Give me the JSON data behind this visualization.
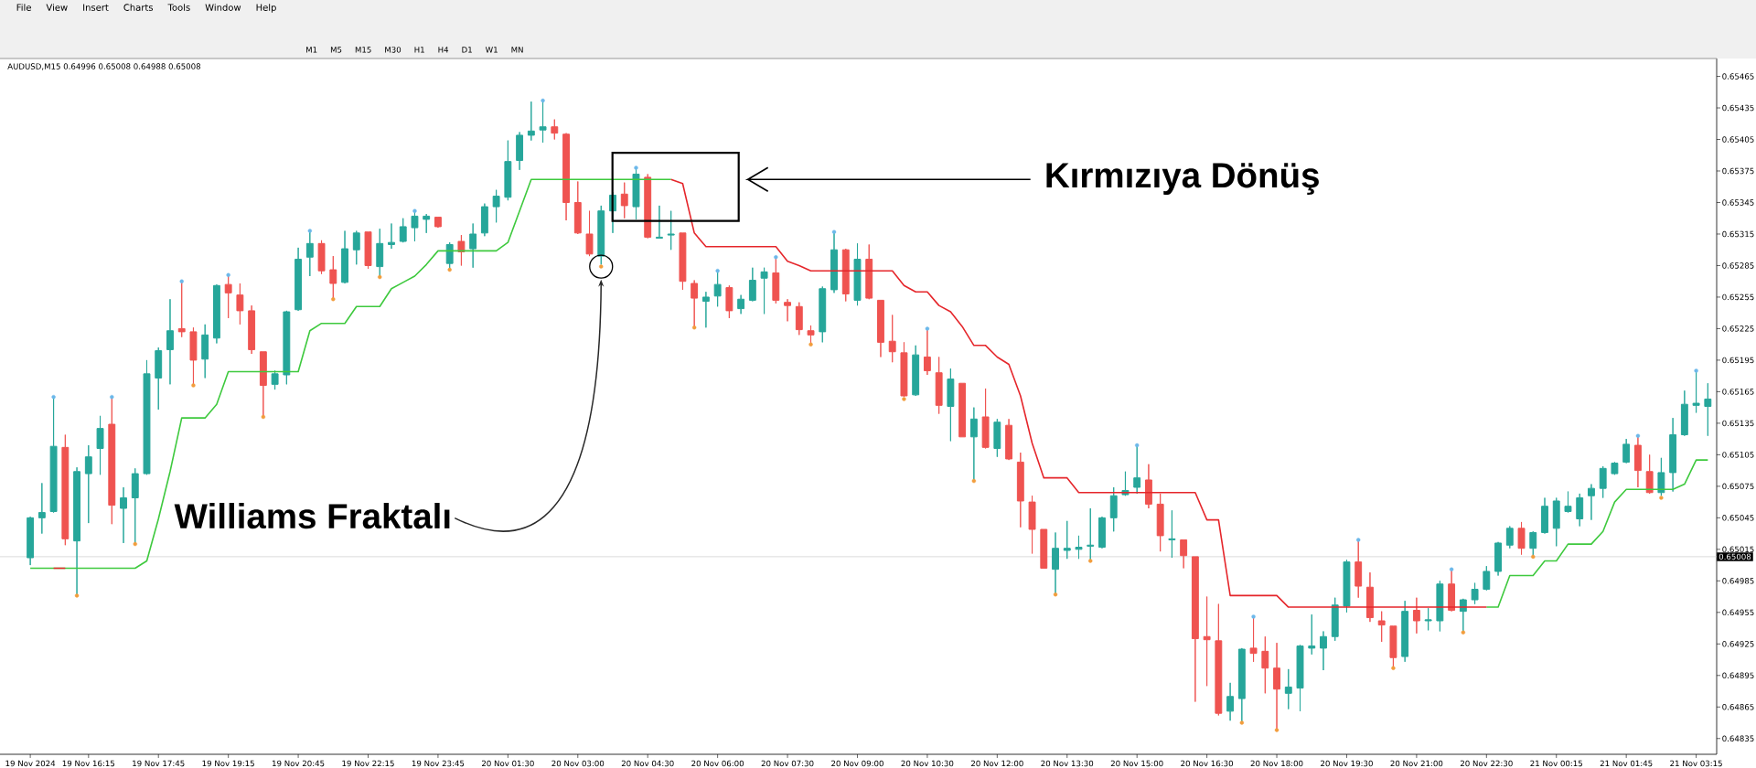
{
  "chart_data": {
    "type": "candlestick",
    "title": "AUDUSD,M15 0.64996 0.65008 0.64988 0.65008",
    "categories": [
      "19 Nov 2024",
      null,
      null,
      null,
      null,
      "19 Nov 16:15",
      null,
      null,
      null,
      null,
      null,
      "19 Nov 17:45",
      null,
      null,
      null,
      null,
      null,
      "19 Nov 19:15",
      null,
      null,
      null,
      null,
      null,
      "19 Nov 20:45",
      null,
      null,
      null,
      null,
      null,
      "19 Nov 22:15",
      null,
      null,
      null,
      null,
      null,
      "19 Nov 23:45",
      null,
      null,
      null,
      null,
      null,
      "20 Nov 01:30",
      null,
      null,
      null,
      null,
      null,
      "20 Nov 03:00",
      null,
      null,
      null,
      null,
      null,
      "20 Nov 04:30",
      null,
      null,
      null,
      null,
      null,
      "20 Nov 06:00",
      null,
      null,
      null,
      null,
      null,
      "20 Nov 07:30",
      null,
      null,
      null,
      null,
      null,
      "20 Nov 09:00",
      null,
      null,
      null,
      null,
      null,
      "20 Nov 10:30",
      null,
      null,
      null,
      null,
      null,
      "20 Nov 12:00",
      null,
      null,
      null,
      null,
      null,
      "20 Nov 13:30",
      null,
      null,
      null,
      null,
      null,
      "20 Nov 15:00",
      null,
      null,
      null,
      null,
      null,
      "20 Nov 16:30",
      null,
      null,
      null,
      null,
      null,
      "20 Nov 18:00",
      null,
      null,
      null,
      null,
      null,
      "20 Nov 19:30",
      null,
      null,
      null,
      null,
      null,
      "20 Nov 21:00",
      null,
      null,
      null,
      null,
      null,
      "20 Nov 22:30",
      null,
      null,
      null,
      null,
      null,
      "21 Nov 00:15",
      null,
      null,
      null,
      null,
      null,
      "21 Nov 01:45",
      null,
      null,
      null,
      null,
      null,
      "21 Nov 03:15",
      null
    ],
    "ohlc": [
      [
        0.65007,
        0.65046,
        0.65,
        0.65045
      ],
      [
        0.65045,
        0.65078,
        0.6503,
        0.6505
      ],
      [
        0.65051,
        0.6516,
        0.6505,
        0.65113
      ],
      [
        0.65112,
        0.65124,
        0.65019,
        0.65025
      ],
      [
        0.65023,
        0.65093,
        0.64972,
        0.65089
      ],
      [
        0.65087,
        0.65114,
        0.6504,
        0.65103
      ],
      [
        0.65111,
        0.65142,
        0.65086,
        0.6513
      ],
      [
        0.65134,
        0.6516,
        0.65039,
        0.65057
      ],
      [
        0.65054,
        0.65074,
        0.65021,
        0.65064
      ],
      [
        0.65064,
        0.65092,
        0.65021,
        0.65087
      ],
      [
        0.65087,
        0.65195,
        0.65086,
        0.65182
      ],
      [
        0.65178,
        0.65207,
        0.65148,
        0.65204
      ],
      [
        0.65205,
        0.65253,
        0.65172,
        0.65223
      ],
      [
        0.65225,
        0.6527,
        0.65217,
        0.65222
      ],
      [
        0.65222,
        0.65226,
        0.65171,
        0.65195
      ],
      [
        0.65196,
        0.65229,
        0.65178,
        0.65219
      ],
      [
        0.65216,
        0.65267,
        0.65211,
        0.65266
      ],
      [
        0.65267,
        0.65276,
        0.65235,
        0.65259
      ],
      [
        0.65257,
        0.65268,
        0.65229,
        0.65242
      ],
      [
        0.65242,
        0.65247,
        0.65201,
        0.65205
      ],
      [
        0.65203,
        0.65203,
        0.65142,
        0.65171
      ],
      [
        0.65172,
        0.65185,
        0.65167,
        0.65182
      ],
      [
        0.65181,
        0.65242,
        0.65172,
        0.65241
      ],
      [
        0.65243,
        0.65302,
        0.65242,
        0.65291
      ],
      [
        0.65293,
        0.65318,
        0.65275,
        0.65306
      ],
      [
        0.65306,
        0.65309,
        0.65277,
        0.6528
      ],
      [
        0.65281,
        0.65294,
        0.65253,
        0.65268
      ],
      [
        0.65269,
        0.65318,
        0.65268,
        0.65301
      ],
      [
        0.653,
        0.65318,
        0.65286,
        0.65316
      ],
      [
        0.65317,
        0.65317,
        0.65282,
        0.65285
      ],
      [
        0.65284,
        0.6532,
        0.65275,
        0.65306
      ],
      [
        0.65305,
        0.65325,
        0.65301,
        0.65307
      ],
      [
        0.65308,
        0.6533,
        0.65307,
        0.65322
      ],
      [
        0.65321,
        0.65337,
        0.65308,
        0.65332
      ],
      [
        0.65329,
        0.65334,
        0.65316,
        0.65332
      ],
      [
        0.65331,
        0.65331,
        0.65321,
        0.65322
      ],
      [
        0.65287,
        0.65307,
        0.65282,
        0.65305
      ],
      [
        0.65308,
        0.65314,
        0.65285,
        0.65298
      ],
      [
        0.65301,
        0.65325,
        0.65283,
        0.65315
      ],
      [
        0.65316,
        0.65344,
        0.65313,
        0.65341
      ],
      [
        0.65341,
        0.65357,
        0.65326,
        0.65351
      ],
      [
        0.6535,
        0.65404,
        0.65347,
        0.65384
      ],
      [
        0.65385,
        0.65412,
        0.65376,
        0.65409
      ],
      [
        0.65409,
        0.65441,
        0.65404,
        0.65413
      ],
      [
        0.65414,
        0.65442,
        0.65402,
        0.65417
      ],
      [
        0.65417,
        0.65424,
        0.65405,
        0.65411
      ],
      [
        0.6541,
        0.65411,
        0.65328,
        0.65345
      ],
      [
        0.65345,
        0.65365,
        0.65315,
        0.65316
      ],
      [
        0.65315,
        0.65337,
        0.65294,
        0.65296
      ],
      [
        0.65294,
        0.65342,
        0.65286,
        0.65337
      ],
      [
        0.65337,
        0.65355,
        0.65316,
        0.65352
      ],
      [
        0.65353,
        0.65364,
        0.6533,
        0.65342
      ],
      [
        0.65341,
        0.65378,
        0.65329,
        0.65372
      ],
      [
        0.65369,
        0.65372,
        0.65311,
        0.65312
      ],
      [
        0.65311,
        0.65342,
        0.65311,
        0.65312
      ],
      [
        0.65314,
        0.65337,
        0.653,
        0.65315
      ],
      [
        0.65316,
        0.65316,
        0.65262,
        0.6527
      ],
      [
        0.65268,
        0.65271,
        0.65226,
        0.65254
      ],
      [
        0.65251,
        0.6526,
        0.65226,
        0.65255
      ],
      [
        0.65256,
        0.6528,
        0.65246,
        0.65267
      ],
      [
        0.65264,
        0.65266,
        0.65235,
        0.65242
      ],
      [
        0.65244,
        0.65257,
        0.65239,
        0.65253
      ],
      [
        0.65252,
        0.65283,
        0.65251,
        0.65271
      ],
      [
        0.65273,
        0.65283,
        0.65239,
        0.65279
      ],
      [
        0.65278,
        0.65293,
        0.65249,
        0.65252
      ],
      [
        0.6525,
        0.65253,
        0.65232,
        0.65247
      ],
      [
        0.65246,
        0.6525,
        0.65219,
        0.65224
      ],
      [
        0.65223,
        0.65228,
        0.65211,
        0.65219
      ],
      [
        0.65222,
        0.65265,
        0.65212,
        0.65263
      ],
      [
        0.65262,
        0.65317,
        0.65259,
        0.653
      ],
      [
        0.653,
        0.65301,
        0.65251,
        0.65258
      ],
      [
        0.65252,
        0.65306,
        0.65247,
        0.65291
      ],
      [
        0.65291,
        0.65305,
        0.65253,
        0.65254
      ],
      [
        0.65252,
        0.65252,
        0.65198,
        0.65212
      ],
      [
        0.65213,
        0.65238,
        0.65193,
        0.65203
      ],
      [
        0.65202,
        0.65212,
        0.6516,
        0.65161
      ],
      [
        0.65162,
        0.65209,
        0.65161,
        0.652
      ],
      [
        0.65198,
        0.65225,
        0.65181,
        0.65185
      ],
      [
        0.65183,
        0.65198,
        0.65144,
        0.65152
      ],
      [
        0.65151,
        0.65187,
        0.65118,
        0.65177
      ],
      [
        0.65173,
        0.65173,
        0.65122,
        0.65122
      ],
      [
        0.65122,
        0.6515,
        0.65081,
        0.65139
      ],
      [
        0.65141,
        0.65168,
        0.65111,
        0.65112
      ],
      [
        0.65111,
        0.65139,
        0.65103,
        0.65136
      ],
      [
        0.65133,
        0.65139,
        0.651,
        0.65101
      ],
      [
        0.65098,
        0.65107,
        0.65036,
        0.65061
      ],
      [
        0.6506,
        0.65066,
        0.65011,
        0.65034
      ],
      [
        0.65034,
        0.65034,
        0.64997,
        0.64997
      ],
      [
        0.64996,
        0.65031,
        0.64972,
        0.65016
      ],
      [
        0.65014,
        0.65042,
        0.65006,
        0.65016
      ],
      [
        0.65015,
        0.65028,
        0.65006,
        0.65017
      ],
      [
        0.65018,
        0.65054,
        0.65005,
        0.65019
      ],
      [
        0.65017,
        0.65046,
        0.65016,
        0.65045
      ],
      [
        0.65045,
        0.65074,
        0.65032,
        0.65066
      ],
      [
        0.65067,
        0.65089,
        0.65066,
        0.65071
      ],
      [
        0.65074,
        0.65114,
        0.65068,
        0.65083
      ],
      [
        0.65081,
        0.65096,
        0.65054,
        0.65058
      ],
      [
        0.65058,
        0.65068,
        0.65013,
        0.65028
      ],
      [
        0.65024,
        0.65052,
        0.65007,
        0.65025
      ],
      [
        0.65024,
        0.65024,
        0.64997,
        0.65009
      ],
      [
        0.65008,
        0.65008,
        0.6487,
        0.6493
      ],
      [
        0.64932,
        0.6497,
        0.64885,
        0.64929
      ],
      [
        0.64928,
        0.64963,
        0.64857,
        0.64859
      ],
      [
        0.64861,
        0.64888,
        0.64852,
        0.64875
      ],
      [
        0.64873,
        0.64921,
        0.6485,
        0.6492
      ],
      [
        0.64921,
        0.64951,
        0.64908,
        0.64916
      ],
      [
        0.64918,
        0.64932,
        0.64878,
        0.64902
      ],
      [
        0.64902,
        0.64926,
        0.64844,
        0.64882
      ],
      [
        0.64878,
        0.64901,
        0.64863,
        0.64884
      ],
      [
        0.64883,
        0.64924,
        0.64861,
        0.64923
      ],
      [
        0.64921,
        0.64953,
        0.64915,
        0.64923
      ],
      [
        0.64921,
        0.64937,
        0.649,
        0.64932
      ],
      [
        0.64932,
        0.64969,
        0.64928,
        0.64962
      ],
      [
        0.64961,
        0.65005,
        0.64955,
        0.65003
      ],
      [
        0.65003,
        0.65024,
        0.64969,
        0.6498
      ],
      [
        0.64979,
        0.64993,
        0.64946,
        0.6495
      ],
      [
        0.64947,
        0.64956,
        0.64927,
        0.64943
      ],
      [
        0.64942,
        0.64942,
        0.64902,
        0.64912
      ],
      [
        0.64913,
        0.64966,
        0.64908,
        0.64956
      ],
      [
        0.64957,
        0.64969,
        0.64935,
        0.64947
      ],
      [
        0.64947,
        0.64959,
        0.64938,
        0.64948
      ],
      [
        0.64947,
        0.64985,
        0.64937,
        0.64982
      ],
      [
        0.64982,
        0.64996,
        0.64956,
        0.64957
      ],
      [
        0.64956,
        0.64968,
        0.64936,
        0.64967
      ],
      [
        0.64967,
        0.64983,
        0.64963,
        0.64977
      ],
      [
        0.64977,
        0.64999,
        0.64976,
        0.64994
      ],
      [
        0.64994,
        0.65022,
        0.6499,
        0.65021
      ],
      [
        0.65019,
        0.65037,
        0.65016,
        0.65035
      ],
      [
        0.65035,
        0.65041,
        0.6501,
        0.65016
      ],
      [
        0.65016,
        0.65032,
        0.65008,
        0.65031
      ],
      [
        0.65031,
        0.65064,
        0.6503,
        0.65056
      ],
      [
        0.65035,
        0.65064,
        0.65018,
        0.65061
      ],
      [
        0.65051,
        0.6507,
        0.6505,
        0.65056
      ],
      [
        0.65044,
        0.65068,
        0.65037,
        0.65064
      ],
      [
        0.65066,
        0.65077,
        0.65043,
        0.65073
      ],
      [
        0.65073,
        0.65094,
        0.65064,
        0.65092
      ],
      [
        0.65087,
        0.65098,
        0.65086,
        0.65097
      ],
      [
        0.65098,
        0.6512,
        0.65097,
        0.65115
      ],
      [
        0.65114,
        0.65123,
        0.65074,
        0.6509
      ],
      [
        0.65089,
        0.65105,
        0.65068,
        0.65069
      ],
      [
        0.65069,
        0.65102,
        0.65066,
        0.65088
      ],
      [
        0.65088,
        0.6514,
        0.6507,
        0.65124
      ],
      [
        0.65124,
        0.65166,
        0.65123,
        0.65153
      ],
      [
        0.65152,
        0.65185,
        0.65145,
        0.65154
      ],
      [
        0.65151,
        0.65173,
        0.65123,
        0.65158
      ]
    ],
    "colors": [
      "#26a69a",
      "#26a69a",
      "#26a69a",
      "#ef5350",
      "#26a69a",
      "#26a69a",
      "#26a69a",
      "#ef5350",
      "#26a69a",
      "#26a69a",
      "#26a69a",
      "#26a69a",
      "#26a69a",
      "#ef5350",
      "#ef5350",
      "#26a69a",
      "#26a69a",
      "#ef5350",
      "#ef5350",
      "#ef5350",
      "#ef5350",
      "#26a69a",
      "#26a69a",
      "#26a69a",
      "#26a69a",
      "#ef5350",
      "#ef5350",
      "#26a69a",
      "#26a69a",
      "#ef5350",
      "#26a69a",
      "#26a69a",
      "#26a69a",
      "#26a69a",
      "#26a69a",
      "#ef5350",
      "#26a69a",
      "#ef5350",
      "#26a69a",
      "#26a69a",
      "#26a69a",
      "#26a69a",
      "#26a69a",
      "#26a69a",
      "#26a69a",
      "#ef5350",
      "#ef5350",
      "#ef5350",
      "#ef5350",
      "#26a69a",
      "#26a69a",
      "#ef5350",
      "#26a69a",
      "#ef5350",
      "#26a69a",
      "#26a69a",
      "#ef5350",
      "#ef5350",
      "#26a69a",
      "#26a69a",
      "#ef5350",
      "#26a69a",
      "#26a69a",
      "#26a69a",
      "#ef5350",
      "#ef5350",
      "#ef5350",
      "#ef5350",
      "#26a69a",
      "#26a69a",
      "#ef5350",
      "#26a69a",
      "#ef5350",
      "#ef5350",
      "#ef5350",
      "#ef5350",
      "#26a69a",
      "#ef5350",
      "#ef5350",
      "#26a69a",
      "#ef5350",
      "#26a69a",
      "#ef5350",
      "#26a69a",
      "#ef5350",
      "#ef5350",
      "#ef5350",
      "#ef5350",
      "#26a69a",
      "#26a69a",
      "#26a69a",
      "#26a69a",
      "#26a69a",
      "#26a69a",
      "#26a69a",
      "#26a69a",
      "#ef5350",
      "#ef5350",
      "#26a69a",
      "#ef5350",
      "#ef5350",
      "#ef5350",
      "#ef5350",
      "#26a69a",
      "#26a69a",
      "#ef5350",
      "#ef5350",
      "#ef5350",
      "#26a69a",
      "#26a69a",
      "#26a69a",
      "#26a69a",
      "#26a69a",
      "#26a69a",
      "#ef5350",
      "#ef5350",
      "#ef5350",
      "#ef5350",
      "#26a69a",
      "#ef5350",
      "#26a69a",
      "#26a69a",
      "#ef5350",
      "#26a69a",
      "#26a69a",
      "#26a69a",
      "#26a69a",
      "#26a69a",
      "#ef5350",
      "#26a69a",
      "#26a69a",
      "#26a69a",
      "#26a69a",
      "#26a69a",
      "#26a69a",
      "#26a69a",
      "#26a69a",
      "#26a69a",
      "#ef5350",
      "#ef5350",
      "#26a69a",
      "#26a69a",
      "#26a69a",
      "#26a69a",
      "#26a69a"
    ],
    "series": [
      {
        "type": "line",
        "color": "#3ec93e",
        "values": [
          0.64997,
          0.64997,
          0.64997,
          0.64997,
          0.64997,
          0.64997,
          0.64997,
          0.64997,
          0.64997,
          0.64997,
          0.65004,
          0.65044,
          0.65089,
          0.6514,
          0.6514,
          0.6514,
          0.65153,
          0.65184,
          0.65184,
          0.65184,
          0.65184,
          0.65184,
          0.65184,
          0.65184,
          0.65223,
          0.6523,
          0.6523,
          0.6523,
          0.65246,
          0.65246,
          0.65246,
          0.65263,
          0.65269,
          0.65275,
          0.65286,
          0.65299,
          0.65299,
          0.65299,
          0.65299,
          0.65299,
          0.65299,
          0.65307,
          0.65337,
          0.65367,
          0.65367,
          0.65367,
          0.65367,
          0.65367,
          0.65367,
          0.65367,
          0.65367,
          0.65367,
          0.65367,
          0.65367,
          0.65367,
          0.65367,
          null,
          null,
          null,
          null,
          null,
          null,
          null,
          null,
          null,
          null,
          null,
          null,
          null,
          null,
          null,
          null,
          null,
          null,
          null,
          null,
          null,
          null,
          null,
          null,
          null,
          null,
          null,
          null,
          null,
          null,
          null,
          null,
          null,
          null,
          null,
          null,
          null,
          null,
          null,
          null,
          null,
          null,
          null,
          null,
          null,
          null,
          null,
          null,
          null,
          null,
          null,
          null,
          null,
          null,
          null,
          null,
          null,
          null,
          null,
          null,
          null,
          null,
          null,
          null,
          null,
          null,
          null,
          null,
          null,
          0.6496,
          0.6496,
          0.6499,
          0.6499,
          0.6499,
          0.65004,
          0.65004,
          0.6502,
          0.6502,
          0.6502,
          0.65032,
          0.6506,
          0.65072,
          0.65072,
          0.65072,
          0.65072,
          0.65072,
          0.65077,
          0.651,
          0.651
        ]
      },
      {
        "type": "line",
        "color": "#e5262b",
        "values": [
          null,
          null,
          0.64997,
          0.64997,
          null,
          null,
          null,
          null,
          null,
          null,
          null,
          null,
          null,
          null,
          null,
          null,
          null,
          null,
          null,
          null,
          null,
          null,
          null,
          null,
          null,
          null,
          null,
          null,
          null,
          null,
          null,
          null,
          null,
          null,
          null,
          null,
          null,
          null,
          null,
          null,
          null,
          null,
          null,
          null,
          null,
          null,
          null,
          null,
          null,
          null,
          null,
          null,
          null,
          null,
          null,
          0.65367,
          0.65363,
          0.65316,
          0.65303,
          0.65303,
          0.65303,
          0.65303,
          0.65303,
          0.65303,
          0.65303,
          0.65289,
          0.65285,
          0.6528,
          0.6528,
          0.6528,
          0.6528,
          0.6528,
          0.6528,
          0.6528,
          0.6528,
          0.65266,
          0.6526,
          0.6526,
          0.65247,
          0.65241,
          0.65227,
          0.65209,
          0.65209,
          0.65198,
          0.65191,
          0.65161,
          0.65116,
          0.65083,
          0.65083,
          0.65083,
          0.65069,
          0.65069,
          0.65069,
          0.65069,
          0.65069,
          0.65069,
          0.65069,
          0.65069,
          0.65069,
          0.65069,
          0.65069,
          0.65043,
          0.65043,
          0.64971,
          0.64971,
          0.64971,
          0.64971,
          0.64971,
          0.6496,
          0.6496,
          0.6496,
          0.6496,
          0.6496,
          0.6496,
          0.6496,
          0.6496,
          0.6496,
          0.6496,
          0.6496,
          0.6496,
          0.6496,
          0.6496,
          0.6496,
          0.6496,
          0.6496,
          0.6496,
          null,
          null,
          null,
          null,
          null,
          null,
          null,
          null,
          null,
          null,
          null,
          null,
          null,
          null,
          null,
          null,
          null,
          null,
          null
        ]
      },
      {
        "type": "scatter",
        "color": "#6cb8ea",
        "marker": "circle",
        "values": [
          null,
          null,
          0.6516,
          null,
          null,
          null,
          null,
          0.6516,
          null,
          null,
          null,
          null,
          null,
          0.6527,
          null,
          null,
          null,
          0.65276,
          null,
          null,
          null,
          null,
          null,
          null,
          0.65318,
          null,
          null,
          null,
          null,
          null,
          null,
          null,
          null,
          0.65337,
          null,
          null,
          null,
          null,
          null,
          null,
          null,
          null,
          null,
          null,
          0.65442,
          null,
          null,
          null,
          null,
          null,
          null,
          null,
          0.65378,
          null,
          null,
          null,
          null,
          null,
          null,
          0.6528,
          null,
          null,
          null,
          null,
          0.65293,
          null,
          null,
          null,
          null,
          0.65317,
          null,
          null,
          null,
          null,
          null,
          null,
          null,
          0.65225,
          null,
          null,
          null,
          null,
          null,
          null,
          null,
          null,
          null,
          null,
          null,
          null,
          null,
          null,
          null,
          null,
          null,
          0.65114,
          null,
          null,
          null,
          null,
          null,
          null,
          null,
          null,
          null,
          0.64951,
          null,
          null,
          null,
          null,
          null,
          null,
          null,
          null,
          0.65024,
          null,
          null,
          null,
          null,
          null,
          null,
          null,
          0.64996,
          null,
          null,
          null,
          null,
          null,
          null,
          null,
          null,
          null,
          null,
          null,
          null,
          null,
          null,
          null,
          0.65123,
          null,
          null,
          null,
          null,
          0.65185,
          null
        ]
      },
      {
        "type": "scatter",
        "color": "#f29d3c",
        "marker": "circle",
        "values": [
          null,
          null,
          null,
          null,
          0.64971,
          null,
          null,
          null,
          null,
          0.6502,
          null,
          null,
          null,
          null,
          0.65171,
          null,
          null,
          null,
          null,
          null,
          0.65141,
          null,
          null,
          null,
          null,
          null,
          0.65253,
          null,
          null,
          null,
          0.65274,
          null,
          null,
          null,
          null,
          null,
          0.65281,
          null,
          null,
          null,
          null,
          null,
          null,
          null,
          null,
          null,
          null,
          null,
          null,
          0.65284,
          null,
          null,
          null,
          null,
          null,
          null,
          null,
          0.65226,
          null,
          null,
          null,
          null,
          null,
          null,
          null,
          null,
          null,
          0.6521,
          null,
          null,
          null,
          null,
          null,
          null,
          null,
          0.65158,
          null,
          null,
          null,
          null,
          null,
          0.6508,
          null,
          null,
          null,
          null,
          null,
          null,
          0.64972,
          null,
          null,
          0.65004,
          null,
          null,
          null,
          null,
          null,
          null,
          null,
          null,
          null,
          null,
          null,
          null,
          0.6485,
          null,
          null,
          0.64843,
          null,
          null,
          null,
          null,
          null,
          null,
          null,
          null,
          null,
          0.64902,
          null,
          null,
          null,
          null,
          null,
          0.64936,
          null,
          null,
          null,
          null,
          null,
          0.65008,
          null,
          null,
          null,
          null,
          null,
          null,
          null,
          null,
          null,
          null,
          0.65064,
          null,
          null,
          null,
          null
        ]
      }
    ],
    "ylim": [
      0.6482,
      0.65482
    ],
    "yticks": [
      0.64835,
      0.64865,
      0.64895,
      0.64925,
      0.64955,
      0.64985,
      0.65015,
      0.65045,
      0.65075,
      0.65105,
      0.65135,
      0.65165,
      0.65195,
      0.65225,
      0.65255,
      0.65285,
      0.65315,
      0.65345,
      0.65375,
      0.65405,
      0.65435,
      0.65465
    ],
    "ref_lines": [
      {
        "axis": "y",
        "value": 0.65008,
        "label": "0.65008",
        "color": "#d0d0d0"
      }
    ],
    "annotations": [
      "Kırmızıya Dönüş",
      "Williams Fraktalı",
      "File View Insert Charts Tools Window Help",
      "M1 M5 M15 M30 H1 H4 D1 W1 MN"
    ]
  }
}
